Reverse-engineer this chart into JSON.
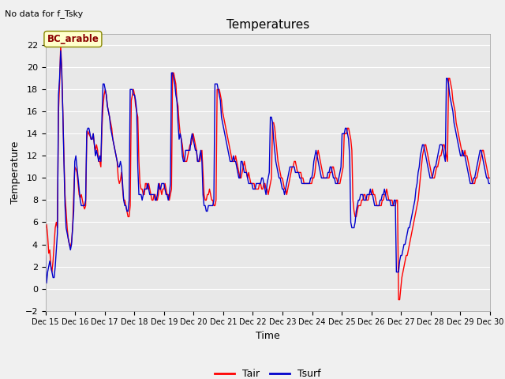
{
  "title": "Temperatures",
  "xlabel": "Time",
  "ylabel": "Temperature",
  "note": "No data for f_Tsky",
  "legend_label": "BC_arable",
  "legend_tair": "Tair",
  "legend_tsurf": "Tsurf",
  "ylim": [
    -2,
    23
  ],
  "yticks": [
    -2,
    0,
    2,
    4,
    6,
    8,
    10,
    12,
    14,
    16,
    18,
    20,
    22
  ],
  "tair_color": "#ff0000",
  "tsurf_color": "#0000cc",
  "bg_color": "#e8e8e8",
  "grid_color": "#ffffff",
  "fig_bg": "#f0f0f0",
  "line_width": 1.0,
  "x_start": 15.0,
  "x_end": 30.0,
  "xtick_labels": [
    "Dec 15",
    "Dec 16",
    "Dec 17",
    "Dec 18",
    "Dec 19",
    "Dec 20",
    "Dec 21",
    "Dec 22",
    "Dec 23",
    "Dec 24",
    "Dec 25",
    "Dec 26",
    "Dec 27",
    "Dec 28",
    "Dec 29",
    "Dec 30"
  ],
  "xtick_positions": [
    15,
    16,
    17,
    18,
    19,
    20,
    21,
    22,
    23,
    24,
    25,
    26,
    27,
    28,
    29,
    30
  ],
  "tair": [
    5.5,
    5.8,
    4.8,
    3.2,
    3.5,
    2.0,
    1.5,
    2.5,
    4.0,
    5.5,
    6.0,
    5.5,
    16.0,
    18.5,
    22.0,
    20.0,
    16.0,
    12.0,
    8.5,
    7.0,
    5.5,
    4.5,
    4.0,
    3.8,
    4.2,
    5.5,
    8.5,
    11.0,
    10.8,
    10.5,
    9.5,
    8.5,
    8.2,
    8.5,
    8.0,
    7.5,
    7.2,
    7.5,
    13.5,
    14.2,
    14.0,
    13.8,
    13.5,
    13.5,
    14.0,
    13.0,
    12.5,
    13.0,
    12.5,
    11.5,
    11.5,
    11.0,
    14.5,
    16.5,
    17.5,
    18.0,
    17.5,
    16.5,
    16.0,
    15.5,
    15.0,
    14.5,
    13.5,
    13.0,
    12.5,
    12.0,
    11.5,
    10.0,
    9.5,
    9.8,
    10.5,
    9.0,
    8.0,
    8.0,
    7.5,
    7.0,
    6.5,
    6.5,
    7.5,
    17.0,
    17.5,
    18.0,
    17.5,
    16.5,
    16.0,
    15.5,
    11.5,
    9.5,
    9.0,
    9.0,
    8.5,
    8.5,
    9.5,
    9.5,
    9.0,
    9.5,
    9.0,
    8.5,
    8.0,
    8.0,
    8.5,
    8.5,
    8.0,
    8.0,
    8.5,
    9.5,
    9.0,
    8.5,
    9.0,
    9.0,
    9.5,
    9.0,
    8.5,
    8.5,
    8.0,
    8.5,
    9.0,
    19.5,
    19.5,
    19.0,
    18.5,
    17.0,
    16.5,
    15.0,
    14.0,
    13.5,
    13.0,
    12.0,
    11.5,
    11.5,
    11.5,
    12.0,
    12.5,
    13.0,
    13.0,
    13.5,
    14.0,
    13.5,
    13.0,
    12.5,
    11.5,
    11.5,
    11.5,
    12.0,
    12.5,
    10.5,
    8.5,
    8.0,
    8.0,
    8.5,
    8.5,
    9.0,
    8.5,
    8.0,
    8.0,
    7.5,
    7.5,
    8.0,
    18.0,
    18.0,
    18.0,
    17.5,
    17.0,
    16.0,
    15.5,
    15.0,
    14.5,
    14.0,
    13.5,
    13.0,
    12.5,
    12.0,
    11.5,
    11.5,
    11.5,
    12.0,
    11.5,
    11.0,
    10.5,
    10.0,
    10.0,
    10.5,
    11.0,
    11.5,
    11.0,
    10.5,
    10.0,
    10.5,
    10.0,
    9.5,
    9.5,
    9.5,
    9.5,
    9.0,
    9.0,
    9.0,
    9.0,
    9.5,
    9.5,
    9.0,
    9.0,
    9.5,
    9.5,
    9.0,
    9.0,
    8.5,
    9.0,
    9.5,
    10.0,
    15.0,
    15.0,
    14.5,
    13.5,
    12.5,
    11.5,
    11.0,
    10.5,
    10.0,
    10.0,
    9.5,
    9.0,
    9.0,
    8.5,
    9.0,
    9.5,
    10.0,
    10.5,
    11.0,
    11.0,
    11.5,
    11.5,
    11.0,
    10.5,
    10.5,
    10.5,
    10.5,
    10.0,
    10.0,
    9.5,
    9.5,
    9.5,
    9.5,
    9.5,
    9.5,
    9.5,
    9.5,
    10.0,
    10.0,
    10.5,
    11.5,
    12.0,
    12.5,
    12.0,
    11.5,
    11.0,
    10.5,
    10.0,
    10.0,
    10.0,
    10.0,
    10.0,
    10.0,
    10.5,
    10.5,
    11.0,
    11.0,
    10.5,
    10.0,
    10.0,
    9.5,
    9.5,
    9.5,
    10.0,
    10.5,
    11.0,
    14.0,
    14.0,
    14.0,
    14.5,
    14.5,
    14.0,
    13.5,
    12.5,
    8.0,
    7.0,
    6.5,
    6.5,
    7.0,
    7.5,
    7.5,
    7.5,
    8.0,
    8.0,
    8.5,
    8.5,
    8.0,
    8.0,
    8.0,
    8.5,
    8.5,
    8.5,
    9.0,
    8.5,
    8.5,
    8.0,
    7.5,
    7.5,
    7.5,
    7.5,
    7.5,
    8.0,
    8.0,
    8.5,
    8.5,
    9.0,
    8.5,
    8.0,
    8.0,
    8.0,
    8.0,
    7.5,
    7.5,
    7.5,
    8.0,
    8.0,
    -1.0,
    -1.0,
    0.0,
    1.0,
    1.5,
    2.0,
    2.5,
    3.0,
    3.0,
    3.5,
    4.0,
    4.5,
    5.0,
    5.5,
    6.0,
    6.5,
    7.0,
    7.5,
    8.0,
    9.0,
    10.0,
    11.0,
    12.0,
    12.5,
    13.0,
    13.0,
    12.5,
    12.0,
    11.5,
    11.0,
    10.5,
    10.0,
    10.0,
    10.0,
    10.5,
    11.0,
    11.0,
    11.5,
    12.0,
    12.0,
    12.5,
    13.0,
    13.0,
    12.5,
    12.0,
    11.5,
    19.0,
    19.0,
    18.5,
    18.0,
    17.0,
    16.5,
    16.0,
    15.0,
    14.5,
    14.0,
    13.5,
    13.0,
    12.5,
    12.0,
    12.0,
    12.5,
    12.0,
    12.0,
    11.5,
    11.0,
    10.5,
    10.0,
    9.5,
    9.5,
    9.5,
    10.0,
    10.0,
    10.5,
    11.0,
    11.5,
    12.0,
    12.5,
    12.5,
    12.0,
    11.5,
    11.0,
    10.5,
    10.0,
    10.0,
    9.5,
    9.5
  ],
  "tsurf": [
    3.0,
    0.5,
    1.5,
    2.0,
    2.5,
    2.0,
    1.5,
    1.0,
    1.0,
    2.0,
    3.5,
    5.0,
    17.5,
    19.0,
    21.5,
    19.5,
    16.0,
    11.5,
    7.5,
    5.5,
    5.0,
    4.5,
    4.0,
    3.5,
    4.0,
    5.5,
    7.0,
    11.5,
    12.0,
    11.0,
    10.0,
    9.0,
    8.0,
    7.5,
    7.5,
    7.5,
    7.5,
    8.0,
    14.2,
    14.5,
    14.5,
    14.0,
    13.5,
    13.5,
    14.0,
    13.0,
    12.0,
    12.5,
    12.0,
    11.5,
    12.0,
    11.5,
    15.5,
    18.5,
    18.5,
    18.0,
    17.5,
    16.5,
    16.0,
    15.5,
    14.5,
    14.0,
    13.5,
    13.0,
    12.5,
    12.0,
    11.5,
    11.0,
    11.0,
    11.5,
    11.0,
    9.5,
    8.0,
    7.5,
    7.5,
    7.0,
    7.0,
    8.0,
    18.0,
    18.0,
    18.0,
    17.5,
    17.5,
    17.0,
    16.0,
    11.0,
    8.5,
    8.5,
    8.5,
    8.0,
    8.5,
    9.0,
    9.0,
    9.0,
    9.5,
    9.0,
    8.5,
    8.5,
    8.5,
    8.5,
    8.5,
    8.0,
    8.0,
    8.5,
    9.5,
    9.0,
    9.0,
    9.5,
    9.5,
    9.5,
    9.0,
    8.5,
    8.5,
    8.0,
    8.5,
    9.5,
    19.5,
    19.5,
    19.0,
    18.5,
    17.5,
    17.0,
    15.0,
    13.5,
    14.0,
    13.5,
    12.0,
    11.5,
    11.5,
    12.5,
    12.5,
    12.5,
    12.5,
    12.5,
    13.5,
    14.0,
    13.5,
    13.0,
    12.5,
    12.5,
    11.5,
    11.5,
    12.0,
    12.5,
    11.5,
    8.5,
    7.5,
    7.5,
    7.0,
    7.0,
    7.5,
    7.5,
    7.5,
    7.5,
    7.5,
    8.0,
    18.5,
    18.5,
    18.5,
    18.0,
    17.5,
    17.0,
    15.5,
    15.0,
    14.5,
    14.0,
    13.5,
    13.0,
    12.5,
    12.0,
    11.5,
    11.5,
    11.5,
    12.0,
    11.5,
    11.5,
    11.0,
    10.5,
    10.0,
    10.0,
    11.5,
    11.5,
    11.0,
    10.5,
    10.5,
    10.5,
    10.0,
    9.5,
    9.5,
    9.5,
    9.5,
    9.0,
    9.0,
    9.0,
    9.5,
    9.5,
    9.5,
    9.5,
    9.5,
    10.0,
    10.0,
    9.5,
    9.0,
    8.5,
    9.5,
    10.0,
    10.5,
    15.5,
    15.5,
    15.0,
    13.5,
    12.5,
    11.5,
    11.0,
    10.5,
    10.0,
    10.0,
    9.5,
    9.0,
    9.0,
    8.5,
    9.0,
    9.5,
    10.0,
    10.5,
    11.0,
    11.0,
    11.0,
    11.0,
    11.0,
    10.5,
    10.5,
    10.5,
    10.5,
    10.0,
    10.0,
    9.5,
    9.5,
    9.5,
    9.5,
    9.5,
    9.5,
    9.5,
    9.5,
    10.0,
    10.0,
    10.5,
    11.5,
    12.0,
    12.5,
    12.0,
    11.5,
    11.0,
    10.5,
    10.0,
    10.0,
    10.0,
    10.0,
    10.0,
    10.0,
    10.5,
    10.5,
    11.0,
    11.0,
    10.5,
    10.0,
    10.0,
    9.5,
    9.5,
    9.5,
    10.0,
    10.5,
    11.0,
    14.0,
    14.0,
    14.0,
    14.5,
    14.5,
    14.0,
    13.5,
    12.0,
    6.0,
    5.5,
    5.5,
    5.5,
    6.0,
    7.0,
    7.5,
    8.0,
    8.0,
    8.5,
    8.5,
    8.5,
    8.0,
    8.0,
    8.0,
    8.5,
    8.5,
    8.5,
    9.0,
    8.5,
    8.5,
    8.0,
    7.5,
    7.5,
    7.5,
    7.5,
    7.5,
    8.0,
    8.0,
    8.5,
    8.5,
    9.0,
    8.5,
    8.0,
    8.0,
    8.0,
    8.0,
    7.5,
    7.5,
    7.5,
    8.0,
    8.0,
    1.5,
    1.5,
    1.5,
    2.5,
    3.0,
    3.0,
    3.5,
    4.0,
    4.0,
    4.5,
    5.0,
    5.5,
    5.5,
    6.0,
    6.5,
    7.0,
    7.5,
    8.0,
    9.0,
    9.5,
    10.5,
    11.0,
    12.0,
    12.5,
    13.0,
    13.0,
    12.5,
    12.0,
    11.5,
    11.0,
    10.5,
    10.0,
    10.0,
    10.0,
    10.5,
    11.0,
    11.0,
    11.5,
    12.0,
    12.5,
    13.0,
    13.0,
    13.0,
    12.5,
    12.0,
    11.5,
    19.0,
    19.0,
    18.5,
    17.5,
    17.0,
    16.5,
    16.0,
    15.0,
    14.5,
    14.0,
    13.5,
    13.0,
    12.5,
    12.0,
    12.0,
    12.5,
    12.0,
    12.0,
    11.5,
    11.0,
    10.5,
    10.0,
    9.5,
    9.5,
    9.5,
    10.0,
    10.0,
    10.5,
    11.0,
    11.5,
    12.0,
    12.5,
    12.5,
    12.0,
    11.5,
    11.0,
    10.5,
    10.0,
    10.0,
    9.5,
    9.5
  ]
}
